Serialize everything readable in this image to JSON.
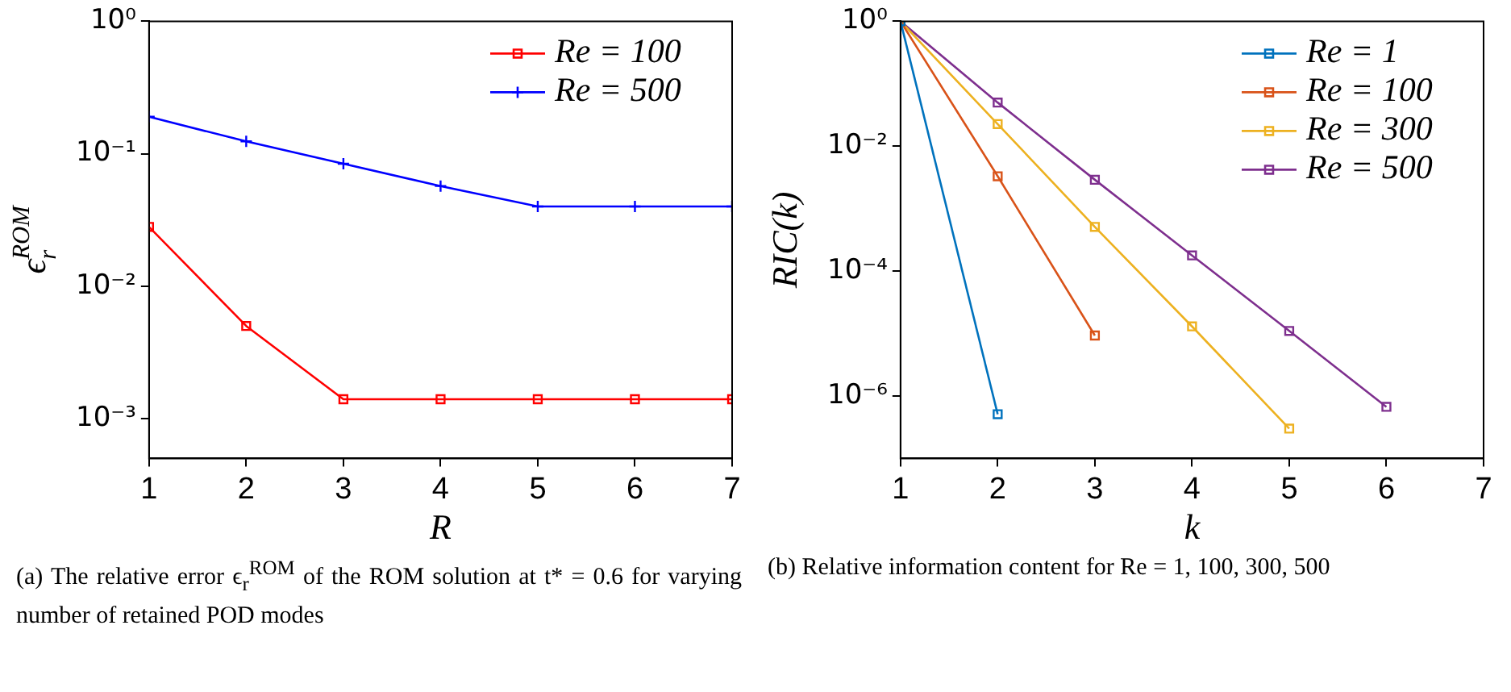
{
  "chart_data": [
    {
      "type": "line",
      "x": [
        1,
        2,
        3,
        4,
        5,
        6,
        7
      ],
      "xlabel": "R",
      "ylabel": "ϵ$_{r}$$^{ROM}$",
      "log": "y",
      "xlim": [
        1,
        7
      ],
      "xticks": [
        1,
        2,
        3,
        4,
        5,
        6,
        7
      ],
      "ylim": [
        0.0005,
        1
      ],
      "yticks": [
        {
          "value": 1,
          "label": "10⁰"
        },
        {
          "value": 0.1,
          "label": "10⁻¹"
        },
        {
          "value": 0.01,
          "label": "10⁻²"
        },
        {
          "value": 0.001,
          "label": "10⁻³"
        }
      ],
      "grid": false,
      "legend": "top right",
      "series": [
        {
          "name": "Re = 100",
          "color": "#ff0000",
          "marker": "square",
          "values": [
            0.028,
            0.005,
            0.0014,
            0.0014,
            0.0014,
            0.0014,
            0.0014
          ]
        },
        {
          "name": "Re = 500",
          "color": "#0000ff",
          "marker": "cross",
          "values": [
            0.19,
            0.124,
            0.084,
            0.057,
            0.04,
            0.04,
            0.04
          ]
        }
      ],
      "annotations": [
        "(a) The relative error ϵ$_{r}$$^{ROM}$ of the ROM solution at t* = 0.6 for varying number of retained POD modes"
      ]
    },
    {
      "type": "line",
      "x": [
        1,
        2,
        3,
        4,
        5,
        6
      ],
      "xlabel": "k",
      "ylabel": "RIC(k)",
      "log": "y",
      "marker": "square",
      "xlim": [
        1,
        7
      ],
      "xticks": [
        1,
        2,
        3,
        4,
        5,
        6,
        7
      ],
      "ylim": [
        1e-07,
        1
      ],
      "yticks": [
        {
          "value": 1,
          "label": "10⁰"
        },
        {
          "value": 0.01,
          "label": "10⁻²"
        },
        {
          "value": 0.0001,
          "label": "10⁻⁴"
        },
        {
          "value": 1e-06,
          "label": "10⁻⁶"
        }
      ],
      "grid": false,
      "legend": "top right",
      "series": [
        {
          "name": "Re = 1",
          "color": "#0072bd",
          "values": [
            1,
            5.1e-07,
            null,
            null,
            null,
            null
          ]
        },
        {
          "name": "Re = 100",
          "color": "#d95319",
          "values": [
            1,
            0.0033,
            9.3e-06,
            null,
            null,
            null
          ]
        },
        {
          "name": "Re = 300",
          "color": "#edb120",
          "values": [
            1,
            0.0226,
            0.00051,
            1.3e-05,
            3e-07,
            null
          ]
        },
        {
          "name": "Re = 500",
          "color": "#7e2f8e",
          "values": [
            1,
            0.05,
            0.0029,
            0.000178,
            1.1e-05,
            6.7e-07
          ]
        }
      ],
      "annotations": [
        "(b) Relative information content for Re = 1, 100, 300, 500"
      ]
    }
  ]
}
